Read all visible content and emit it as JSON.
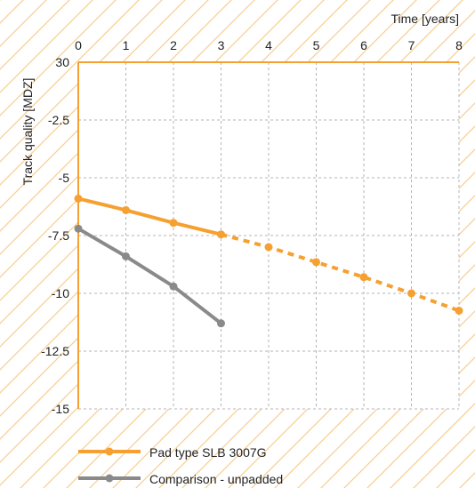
{
  "chart_data": {
    "type": "line",
    "title": "",
    "xlabel": "Time [years]",
    "ylabel": "Track quality [MDZ]",
    "x_ticks": [
      "0",
      "1",
      "2",
      "3",
      "4",
      "5",
      "6",
      "7",
      "8"
    ],
    "y_ticks": [
      "30",
      "-2.5",
      "-5",
      "-7.5",
      "-10",
      "-12.5",
      "-15"
    ],
    "xlim": [
      0,
      8
    ],
    "grid": true,
    "legend_position": "bottom-left",
    "series": [
      {
        "name": "Pad type SLB 3007G",
        "color": "#f5a030",
        "measured": {
          "x": [
            0,
            1,
            2,
            3
          ],
          "y": [
            -5.9,
            -6.4,
            -6.95,
            -7.45
          ]
        },
        "projected": {
          "x": [
            3,
            4,
            5,
            6,
            7,
            8
          ],
          "y": [
            -7.45,
            -8.0,
            -8.65,
            -9.3,
            -10.0,
            -10.75
          ]
        }
      },
      {
        "name": "Comparison - unpadded",
        "color": "#8a8a8a",
        "measured": {
          "x": [
            0,
            1,
            2,
            3
          ],
          "y": [
            -7.2,
            -8.4,
            -9.7,
            -11.3
          ]
        }
      }
    ]
  }
}
